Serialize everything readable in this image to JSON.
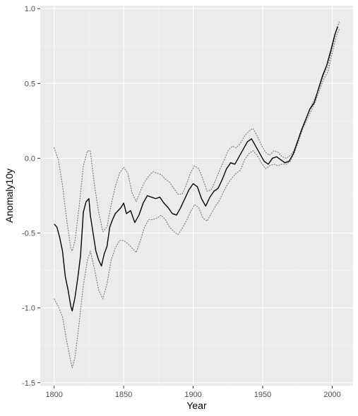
{
  "chart_data": {
    "type": "line",
    "title": "",
    "xlabel": "Year",
    "ylabel": "Anomaly10y",
    "xlim": [
      1790,
      2015
    ],
    "ylim": [
      -1.52,
      1.02
    ],
    "x_ticks": [
      1800,
      1850,
      1900,
      1950,
      2000
    ],
    "y_ticks": [
      -1.5,
      -1.0,
      -0.5,
      0.0,
      0.5,
      1.0
    ],
    "x_tick_labels": [
      "1800",
      "1850",
      "1900",
      "1950",
      "2000"
    ],
    "y_tick_labels": [
      "-1.5",
      "-1.0",
      "-0.5",
      "0.0",
      "0.5",
      "1.0"
    ],
    "grid": true,
    "colors": {
      "panel_background": "#ebebeb",
      "grid_major": "#ffffff",
      "grid_minor": "#f5f5f5",
      "main_line": "#000000",
      "bound_lines": "#7f7f7f"
    },
    "series": [
      {
        "role": "main",
        "style": "solid",
        "x": [
          1800,
          1802,
          1804,
          1806,
          1808,
          1810,
          1812,
          1813,
          1815,
          1817,
          1819,
          1821,
          1823,
          1825,
          1826,
          1828,
          1830,
          1832,
          1834,
          1836,
          1838,
          1840,
          1842,
          1844,
          1846,
          1848,
          1850,
          1852,
          1855,
          1858,
          1861,
          1864,
          1867,
          1870,
          1873,
          1876,
          1879,
          1882,
          1885,
          1888,
          1891,
          1894,
          1897,
          1900,
          1903,
          1906,
          1909,
          1912,
          1915,
          1918,
          1921,
          1924,
          1927,
          1930,
          1933,
          1936,
          1939,
          1942,
          1945,
          1948,
          1951,
          1954,
          1957,
          1960,
          1963,
          1966,
          1969,
          1972,
          1975,
          1978,
          1981,
          1984,
          1987,
          1990,
          1993,
          1996,
          1999,
          2002,
          2004
        ],
        "y": [
          -0.44,
          -0.46,
          -0.53,
          -0.62,
          -0.79,
          -0.88,
          -0.99,
          -1.02,
          -0.93,
          -0.8,
          -0.65,
          -0.36,
          -0.29,
          -0.27,
          -0.38,
          -0.5,
          -0.62,
          -0.68,
          -0.72,
          -0.64,
          -0.59,
          -0.46,
          -0.41,
          -0.37,
          -0.35,
          -0.33,
          -0.3,
          -0.37,
          -0.35,
          -0.43,
          -0.38,
          -0.3,
          -0.25,
          -0.26,
          -0.27,
          -0.26,
          -0.3,
          -0.33,
          -0.37,
          -0.38,
          -0.33,
          -0.27,
          -0.21,
          -0.17,
          -0.19,
          -0.27,
          -0.32,
          -0.26,
          -0.22,
          -0.2,
          -0.14,
          -0.07,
          -0.03,
          -0.04,
          0.01,
          0.06,
          0.11,
          0.13,
          0.08,
          0.03,
          -0.02,
          -0.04,
          0.0,
          0.01,
          -0.01,
          -0.03,
          -0.02,
          0.03,
          0.11,
          0.19,
          0.26,
          0.33,
          0.37,
          0.46,
          0.55,
          0.62,
          0.72,
          0.83,
          0.88
        ]
      },
      {
        "role": "upper-bound",
        "style": "dotted",
        "x": [
          1800,
          1803,
          1806,
          1809,
          1812,
          1813,
          1815,
          1818,
          1821,
          1824,
          1826,
          1829,
          1832,
          1835,
          1838,
          1841,
          1844,
          1847,
          1850,
          1853,
          1856,
          1859,
          1862,
          1865,
          1868,
          1871,
          1874,
          1877,
          1880,
          1883,
          1886,
          1889,
          1892,
          1895,
          1898,
          1901,
          1904,
          1907,
          1910,
          1913,
          1916,
          1919,
          1922,
          1925,
          1928,
          1931,
          1934,
          1937,
          1940,
          1943,
          1946,
          1949,
          1952,
          1955,
          1958,
          1961,
          1964,
          1967,
          1970,
          1973,
          1976,
          1979,
          1982,
          1985,
          1988,
          1991,
          1994,
          1997,
          2000,
          2003,
          2005
        ],
        "y": [
          0.07,
          -0.01,
          -0.18,
          -0.41,
          -0.6,
          -0.62,
          -0.55,
          -0.32,
          -0.05,
          0.05,
          0.05,
          -0.18,
          -0.36,
          -0.49,
          -0.46,
          -0.31,
          -0.19,
          -0.1,
          -0.06,
          -0.1,
          -0.23,
          -0.29,
          -0.22,
          -0.16,
          -0.12,
          -0.09,
          -0.1,
          -0.11,
          -0.14,
          -0.16,
          -0.2,
          -0.24,
          -0.24,
          -0.18,
          -0.1,
          -0.05,
          -0.07,
          -0.14,
          -0.22,
          -0.21,
          -0.15,
          -0.08,
          -0.02,
          0.05,
          0.08,
          0.07,
          0.1,
          0.15,
          0.18,
          0.2,
          0.15,
          0.09,
          0.04,
          0.02,
          0.05,
          0.04,
          0.01,
          0.0,
          0.02,
          0.06,
          0.14,
          0.22,
          0.28,
          0.35,
          0.41,
          0.48,
          0.56,
          0.62,
          0.74,
          0.86,
          0.91
        ]
      },
      {
        "role": "lower-bound",
        "style": "dotted",
        "x": [
          1800,
          1803,
          1806,
          1809,
          1812,
          1813,
          1815,
          1818,
          1821,
          1824,
          1826,
          1829,
          1832,
          1835,
          1838,
          1841,
          1844,
          1847,
          1850,
          1853,
          1856,
          1859,
          1862,
          1865,
          1868,
          1871,
          1874,
          1877,
          1880,
          1883,
          1886,
          1889,
          1892,
          1895,
          1898,
          1901,
          1904,
          1907,
          1910,
          1913,
          1916,
          1919,
          1922,
          1925,
          1928,
          1931,
          1934,
          1937,
          1940,
          1943,
          1946,
          1949,
          1952,
          1955,
          1958,
          1961,
          1964,
          1967,
          1970,
          1973,
          1976,
          1979,
          1982,
          1985,
          1988,
          1991,
          1994,
          1997,
          2000,
          2003,
          2005
        ],
        "y": [
          -0.94,
          -0.99,
          -1.06,
          -1.22,
          -1.36,
          -1.4,
          -1.33,
          -1.1,
          -0.85,
          -0.68,
          -0.62,
          -0.74,
          -0.88,
          -0.94,
          -0.84,
          -0.68,
          -0.6,
          -0.55,
          -0.55,
          -0.57,
          -0.6,
          -0.63,
          -0.55,
          -0.46,
          -0.41,
          -0.41,
          -0.4,
          -0.38,
          -0.41,
          -0.46,
          -0.49,
          -0.51,
          -0.47,
          -0.42,
          -0.36,
          -0.31,
          -0.33,
          -0.4,
          -0.42,
          -0.37,
          -0.32,
          -0.28,
          -0.22,
          -0.17,
          -0.13,
          -0.1,
          -0.08,
          -0.01,
          0.03,
          0.05,
          0.02,
          -0.03,
          -0.07,
          -0.05,
          -0.04,
          -0.05,
          -0.04,
          -0.04,
          -0.02,
          0.04,
          0.12,
          0.2,
          0.26,
          0.32,
          0.38,
          0.46,
          0.53,
          0.58,
          0.7,
          0.82,
          0.86
        ]
      }
    ]
  }
}
